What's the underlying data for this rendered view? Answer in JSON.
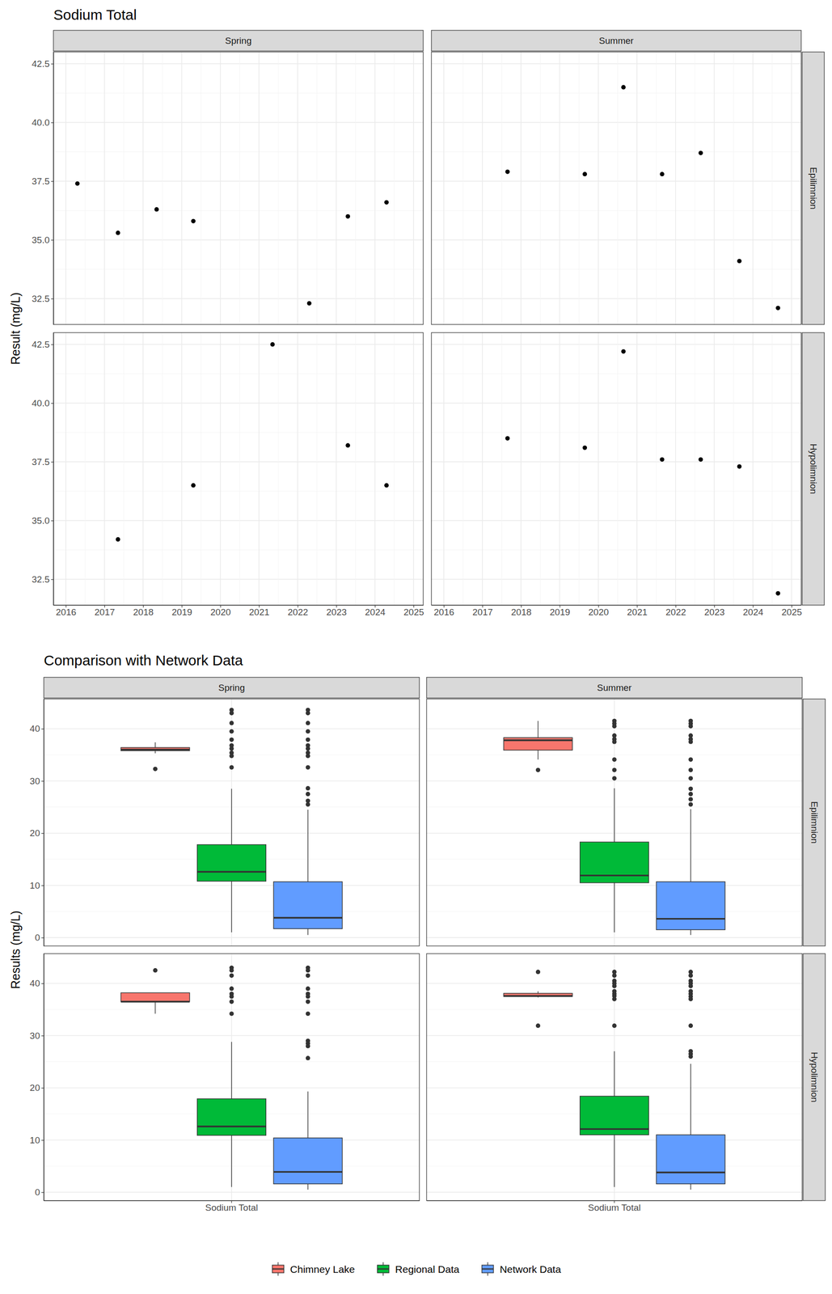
{
  "chart_data": [
    {
      "type": "scatter",
      "title": "Sodium Total",
      "y_label": "Result (mg/L)",
      "columns": [
        "Spring",
        "Summer"
      ],
      "rows": [
        "Epilimnion",
        "Hypolimnion"
      ],
      "xlim": [
        2015.68,
        2025.25
      ],
      "xticks": [
        2016,
        2017,
        2018,
        2019,
        2020,
        2021,
        2022,
        2023,
        2024,
        2025
      ],
      "ylim": [
        31.4,
        43.0
      ],
      "yticks": [
        32.5,
        {
          "value": 35,
          "label": "35.0"
        },
        37.5,
        {
          "value": 40,
          "label": "40.0"
        },
        42.5
      ],
      "grid": true,
      "color": "#000000",
      "marker": "circle",
      "panels": [
        [
          {
            "x": [
              2016.3,
              2017.35,
              2018.35,
              2019.3,
              2022.3,
              2023.3,
              2024.3
            ],
            "values": [
              37.4,
              35.3,
              36.3,
              35.8,
              32.3,
              36.0,
              36.6
            ]
          },
          {
            "x": [
              2017.65,
              2019.65,
              2020.65,
              2021.65,
              2022.65,
              2023.65,
              2024.65
            ],
            "values": [
              37.9,
              37.8,
              41.5,
              37.8,
              38.7,
              34.1,
              32.1
            ]
          }
        ],
        [
          {
            "x": [
              2017.35,
              2019.3,
              2021.35,
              2023.3,
              2024.3
            ],
            "values": [
              34.2,
              36.5,
              42.5,
              38.2,
              36.5
            ]
          },
          {
            "x": [
              2017.65,
              2019.65,
              2020.65,
              2021.65,
              2022.65,
              2023.65,
              2024.65
            ],
            "values": [
              38.5,
              38.1,
              42.2,
              37.6,
              37.6,
              37.3,
              31.9
            ]
          }
        ]
      ]
    },
    {
      "type": "box",
      "title": "Comparison with Network Data",
      "y_label": "Results (mg/L)",
      "columns": [
        "Spring",
        "Summer"
      ],
      "rows": [
        "Epilimnion",
        "Hypolimnion"
      ],
      "categories": [
        "Sodium Total"
      ],
      "ylim": [
        -1.6,
        45.7
      ],
      "yticks": [
        0,
        10,
        20,
        30,
        40
      ],
      "grid": true,
      "legend": "bottom",
      "series": [
        {
          "name": "Chimney Lake",
          "color": "#F8766D"
        },
        {
          "name": "Regional Data",
          "color": "#00BA38"
        },
        {
          "name": "Network Data",
          "color": "#619CFF"
        }
      ],
      "panels": [
        [
          [
            {
              "low": 35.3,
              "q1": 35.8,
              "median": 36.0,
              "q3": 36.4,
              "high": 37.4,
              "outliers": [
                32.3
              ]
            },
            {
              "low": 1.0,
              "q1": 10.8,
              "median": 12.6,
              "q3": 17.8,
              "high": 28.5,
              "outliers": [
                43.6,
                43.0,
                41.1,
                39.5,
                37.9,
                36.8,
                36.2,
                35.4,
                34.8,
                32.6
              ]
            },
            {
              "low": 0.5,
              "q1": 1.7,
              "median": 3.8,
              "q3": 10.7,
              "high": 24.5,
              "outliers": [
                43.6,
                43.0,
                41.1,
                39.5,
                37.9,
                36.8,
                36.2,
                35.4,
                34.8,
                32.6,
                28.6,
                27.5,
                26.2,
                25.5
              ]
            }
          ],
          [
            {
              "low": 34.1,
              "q1": 35.9,
              "median": 37.8,
              "q3": 38.3,
              "high": 41.5,
              "outliers": [
                32.1
              ]
            },
            {
              "low": 1.0,
              "q1": 10.5,
              "median": 11.9,
              "q3": 18.3,
              "high": 28.6,
              "outliers": [
                41.5,
                41.0,
                40.5,
                38.7,
                38.0,
                37.5,
                34.1,
                32.1,
                30.5
              ]
            },
            {
              "low": 0.5,
              "q1": 1.5,
              "median": 3.6,
              "q3": 10.7,
              "high": 24.6,
              "outliers": [
                41.5,
                41.0,
                40.5,
                38.7,
                38.0,
                37.5,
                34.1,
                32.1,
                30.5,
                28.5,
                27.5,
                26.5,
                25.5
              ]
            }
          ]
        ],
        [
          [
            {
              "low": 34.2,
              "q1": 36.5,
              "median": 36.5,
              "q3": 38.2,
              "high": 38.2,
              "outliers": [
                42.5
              ]
            },
            {
              "low": 1.0,
              "q1": 10.9,
              "median": 12.6,
              "q3": 17.9,
              "high": 28.8,
              "outliers": [
                43.0,
                42.5,
                41.5,
                39.0,
                38.0,
                37.5,
                36.5,
                34.2
              ]
            },
            {
              "low": 0.5,
              "q1": 1.6,
              "median": 3.9,
              "q3": 10.4,
              "high": 19.3,
              "outliers": [
                43.0,
                42.5,
                41.5,
                39.0,
                38.0,
                37.5,
                36.5,
                34.2,
                29.0,
                28.5,
                28.0,
                25.7
              ]
            }
          ],
          [
            {
              "low": 37.3,
              "q1": 37.5,
              "median": 37.6,
              "q3": 38.1,
              "high": 38.5,
              "outliers": [
                42.2,
                31.9
              ]
            },
            {
              "low": 1.0,
              "q1": 11.0,
              "median": 12.1,
              "q3": 18.4,
              "high": 27.0,
              "outliers": [
                42.2,
                41.5,
                40.5,
                40.0,
                39.5,
                38.5,
                38.0,
                37.6,
                37.0,
                31.9
              ]
            },
            {
              "low": 0.5,
              "q1": 1.6,
              "median": 3.8,
              "q3": 11.0,
              "high": 24.6,
              "outliers": [
                42.2,
                41.5,
                40.5,
                40.0,
                39.5,
                38.5,
                38.0,
                37.5,
                37.0,
                31.9,
                27.0,
                26.5,
                26.0
              ]
            }
          ]
        ]
      ]
    }
  ]
}
